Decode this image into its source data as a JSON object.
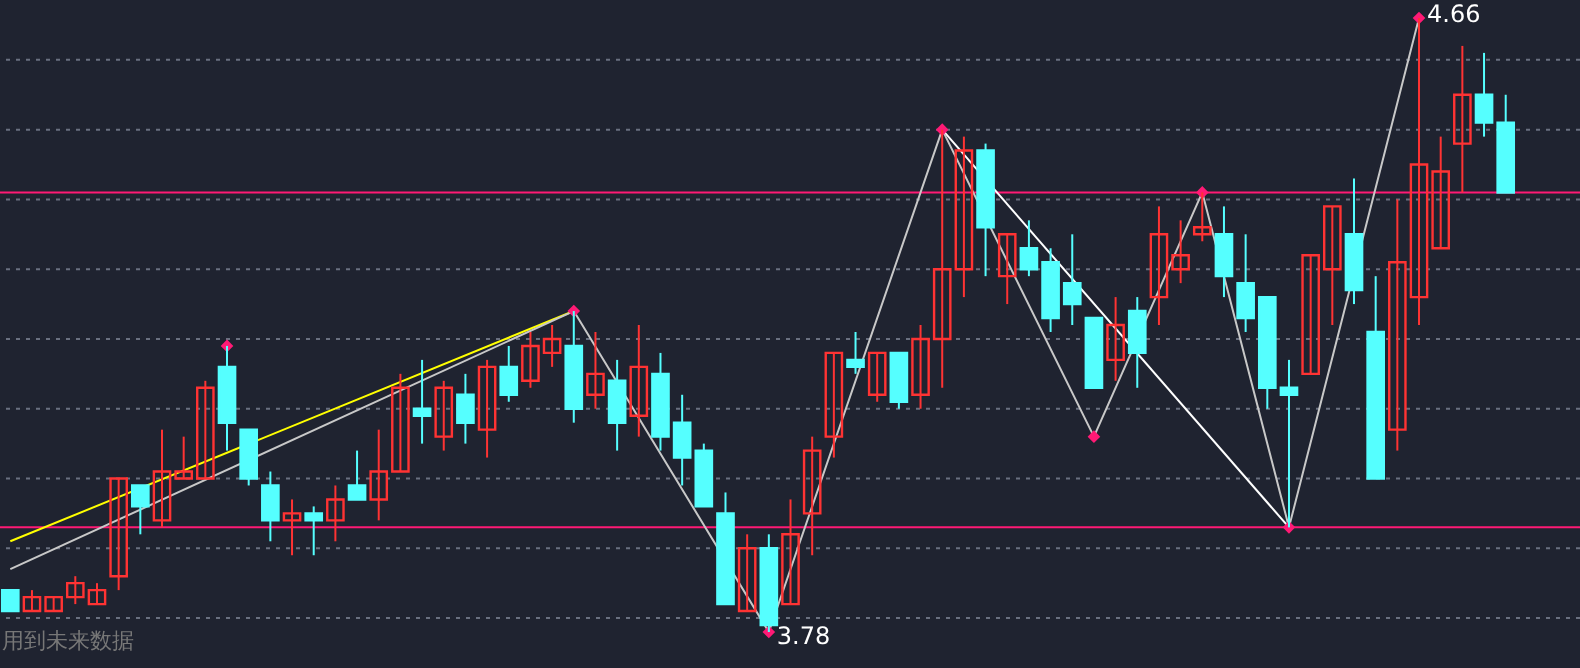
{
  "chart_data": {
    "type": "candlestick",
    "categories": [
      null,
      null,
      null,
      null,
      null,
      null,
      null,
      null,
      null,
      null,
      null,
      null,
      null,
      null,
      null,
      null,
      null,
      null,
      null,
      null,
      null,
      null,
      null,
      null,
      null,
      null,
      null,
      null,
      null,
      null,
      null,
      null,
      null,
      null,
      null,
      null,
      null,
      null,
      null,
      null,
      null,
      null,
      null,
      null,
      null,
      null,
      null,
      null,
      null,
      null,
      null,
      null,
      null,
      null,
      null,
      null,
      null,
      null,
      null,
      null,
      null,
      null,
      null,
      null,
      null,
      null,
      null,
      null,
      null,
      null
    ],
    "ohlc": [
      [
        3.84,
        3.84,
        3.81,
        3.81
      ],
      [
        3.81,
        3.84,
        3.81,
        3.83
      ],
      [
        3.81,
        3.83,
        3.81,
        3.83
      ],
      [
        3.83,
        3.86,
        3.82,
        3.85
      ],
      [
        3.82,
        3.85,
        3.82,
        3.84
      ],
      [
        3.86,
        4.0,
        3.84,
        4.0
      ],
      [
        3.99,
        3.99,
        3.92,
        3.96
      ],
      [
        3.94,
        4.07,
        3.93,
        4.01
      ],
      [
        4.0,
        4.06,
        4.0,
        4.01
      ],
      [
        4.0,
        4.14,
        4.0,
        4.13
      ],
      [
        4.16,
        4.19,
        4.04,
        4.08
      ],
      [
        4.07,
        4.07,
        3.99,
        4.0
      ],
      [
        3.99,
        4.01,
        3.91,
        3.94
      ],
      [
        3.94,
        3.97,
        3.89,
        3.95
      ],
      [
        3.95,
        3.96,
        3.89,
        3.94
      ],
      [
        3.94,
        3.99,
        3.91,
        3.97
      ],
      [
        3.99,
        4.04,
        3.97,
        3.97
      ],
      [
        3.97,
        4.07,
        3.94,
        4.01
      ],
      [
        4.01,
        4.15,
        4.01,
        4.13
      ],
      [
        4.1,
        4.17,
        4.05,
        4.09
      ],
      [
        4.06,
        4.14,
        4.04,
        4.13
      ],
      [
        4.12,
        4.15,
        4.05,
        4.08
      ],
      [
        4.07,
        4.17,
        4.03,
        4.16
      ],
      [
        4.16,
        4.19,
        4.11,
        4.12
      ],
      [
        4.14,
        4.21,
        4.13,
        4.19
      ],
      [
        4.18,
        4.22,
        4.16,
        4.2
      ],
      [
        4.19,
        4.24,
        4.08,
        4.1
      ],
      [
        4.12,
        4.21,
        4.1,
        4.15
      ],
      [
        4.14,
        4.17,
        4.04,
        4.08
      ],
      [
        4.09,
        4.22,
        4.06,
        4.16
      ],
      [
        4.15,
        4.18,
        4.04,
        4.06
      ],
      [
        4.08,
        4.12,
        3.99,
        4.03
      ],
      [
        4.04,
        4.05,
        3.96,
        3.96
      ],
      [
        3.95,
        3.98,
        3.82,
        3.82
      ],
      [
        3.81,
        3.92,
        3.81,
        3.9
      ],
      [
        3.9,
        3.92,
        3.78,
        3.79
      ],
      [
        3.82,
        3.97,
        3.82,
        3.92
      ],
      [
        3.95,
        4.06,
        3.89,
        4.04
      ],
      [
        4.06,
        4.18,
        4.03,
        4.18
      ],
      [
        4.17,
        4.21,
        4.15,
        4.16
      ],
      [
        4.12,
        4.18,
        4.11,
        4.18
      ],
      [
        4.18,
        4.18,
        4.1,
        4.11
      ],
      [
        4.12,
        4.22,
        4.1,
        4.2
      ],
      [
        4.2,
        4.5,
        4.13,
        4.3
      ],
      [
        4.3,
        4.49,
        4.26,
        4.47
      ],
      [
        4.47,
        4.48,
        4.29,
        4.36
      ],
      [
        4.29,
        4.35,
        4.25,
        4.35
      ],
      [
        4.33,
        4.37,
        4.29,
        4.3
      ],
      [
        4.31,
        4.33,
        4.21,
        4.23
      ],
      [
        4.28,
        4.35,
        4.22,
        4.25
      ],
      [
        4.23,
        4.23,
        4.13,
        4.13
      ],
      [
        4.17,
        4.26,
        4.14,
        4.22
      ],
      [
        4.24,
        4.26,
        4.13,
        4.18
      ],
      [
        4.26,
        4.39,
        4.22,
        4.35
      ],
      [
        4.3,
        4.37,
        4.28,
        4.32
      ],
      [
        4.35,
        4.41,
        4.34,
        4.36
      ],
      [
        4.35,
        4.39,
        4.26,
        4.29
      ],
      [
        4.28,
        4.35,
        4.21,
        4.23
      ],
      [
        4.26,
        4.26,
        4.1,
        4.13
      ],
      [
        4.13,
        4.17,
        3.93,
        4.12
      ],
      [
        4.15,
        4.32,
        4.15,
        4.32
      ],
      [
        4.3,
        4.39,
        4.22,
        4.39
      ],
      [
        4.35,
        4.43,
        4.25,
        4.27
      ],
      [
        4.21,
        4.29,
        4.0,
        4.0
      ],
      [
        4.07,
        4.4,
        4.04,
        4.31
      ],
      [
        4.26,
        4.66,
        4.22,
        4.45
      ],
      [
        4.33,
        4.49,
        4.33,
        4.44
      ],
      [
        4.48,
        4.62,
        4.41,
        4.55
      ],
      [
        4.55,
        4.61,
        4.49,
        4.51
      ],
      [
        4.51,
        4.55,
        4.41,
        4.41
      ]
    ],
    "colors": [
      "#55ffff",
      "#ff3333",
      "#ff3333",
      "#ff3333",
      "#ff3333",
      "#ff3333",
      "#55ffff",
      "#ff3333",
      "#ff3333",
      "#ff3333",
      "#55ffff",
      "#55ffff",
      "#55ffff",
      "#ff3333",
      "#55ffff",
      "#ff3333",
      "#55ffff",
      "#ff3333",
      "#ff3333",
      "#55ffff",
      "#ff3333",
      "#55ffff",
      "#ff3333",
      "#55ffff",
      "#ff3333",
      "#ff3333",
      "#55ffff",
      "#ff3333",
      "#55ffff",
      "#ff3333",
      "#55ffff",
      "#55ffff",
      "#55ffff",
      "#55ffff",
      "#ff3333",
      "#55ffff",
      "#ff3333",
      "#ff3333",
      "#ff3333",
      "#55ffff",
      "#ff3333",
      "#55ffff",
      "#ff3333",
      "#ff3333",
      "#ff3333",
      "#55ffff",
      "#ff3333",
      "#55ffff",
      "#55ffff",
      "#55ffff",
      "#55ffff",
      "#ff3333",
      "#55ffff",
      "#ff3333",
      "#ff3333",
      "#ff3333",
      "#55ffff",
      "#55ffff",
      "#55ffff",
      "#55ffff",
      "#ff3333",
      "#ff3333",
      "#55ffff",
      "#55ffff",
      "#ff3333",
      "#ff3333",
      "#ff3333",
      "#ff3333",
      "#55ffff",
      "#55ffff"
    ],
    "series": [
      {
        "type": "line",
        "color": "#ffff00",
        "values": [
          3.91,
          null,
          null,
          null,
          null,
          null,
          null,
          null,
          null,
          null,
          null,
          null,
          null,
          null,
          null,
          null,
          null,
          null,
          null,
          null,
          null,
          null,
          null,
          null,
          null,
          null,
          4.24,
          null,
          null,
          null,
          null,
          null,
          null,
          null,
          null,
          null,
          null,
          null,
          null,
          null,
          null,
          null,
          null,
          null,
          null,
          null,
          null,
          null,
          null,
          null,
          null,
          null,
          null,
          null,
          null,
          null,
          null,
          null,
          null,
          null,
          null,
          null,
          null,
          null,
          null,
          null,
          null,
          null,
          null,
          null
        ]
      },
      {
        "type": "line",
        "color": "#c8c8c8",
        "values": [
          3.87,
          null,
          null,
          null,
          null,
          null,
          null,
          null,
          null,
          null,
          null,
          null,
          null,
          null,
          null,
          null,
          null,
          null,
          null,
          null,
          null,
          null,
          null,
          null,
          null,
          null,
          4.24,
          null,
          null,
          null,
          null,
          null,
          null,
          null,
          null,
          null,
          null,
          null,
          null,
          null,
          null,
          null,
          null,
          null,
          null,
          null,
          null,
          null,
          null,
          null,
          null,
          null,
          null,
          null,
          null,
          null,
          null,
          null,
          null,
          null,
          null,
          null,
          null,
          null,
          null,
          null,
          null,
          null,
          null,
          null
        ]
      },
      {
        "type": "line",
        "color": "#ffffff",
        "values": [
          null,
          null,
          null,
          null,
          null,
          null,
          null,
          null,
          null,
          null,
          null,
          null,
          null,
          null,
          null,
          null,
          null,
          null,
          null,
          null,
          null,
          null,
          null,
          null,
          null,
          null,
          null,
          null,
          null,
          null,
          null,
          null,
          null,
          null,
          null,
          null,
          null,
          null,
          null,
          null,
          null,
          null,
          null,
          4.5,
          null,
          null,
          null,
          null,
          null,
          null,
          null,
          null,
          null,
          null,
          null,
          null,
          null,
          null,
          null,
          3.93,
          null,
          null,
          null,
          null,
          null,
          null,
          null,
          null,
          null,
          null
        ]
      },
      {
        "type": "line",
        "color": "#c8c8c8",
        "values": [
          null,
          null,
          null,
          null,
          null,
          null,
          null,
          null,
          null,
          null,
          null,
          null,
          null,
          null,
          null,
          null,
          null,
          null,
          null,
          null,
          null,
          null,
          null,
          null,
          null,
          null,
          4.24,
          null,
          null,
          null,
          null,
          null,
          null,
          null,
          null,
          3.78,
          null,
          null,
          null,
          null,
          null,
          null,
          null,
          4.5,
          null,
          null,
          null,
          null,
          null,
          null,
          4.06,
          null,
          null,
          null,
          null,
          4.41,
          null,
          null,
          null,
          3.93,
          null,
          null,
          null,
          null,
          null,
          4.66,
          null,
          null,
          null,
          null
        ]
      },
      {
        "type": "scatter",
        "color": "#ff1a75",
        "marker": "diamond",
        "values": [
          null,
          null,
          null,
          null,
          null,
          null,
          null,
          null,
          null,
          null,
          4.19,
          null,
          null,
          null,
          null,
          null,
          null,
          null,
          null,
          null,
          null,
          null,
          null,
          null,
          null,
          null,
          4.24,
          null,
          null,
          null,
          null,
          null,
          null,
          null,
          null,
          3.78,
          null,
          null,
          null,
          null,
          null,
          null,
          null,
          4.5,
          null,
          null,
          null,
          null,
          null,
          null,
          4.06,
          null,
          null,
          null,
          null,
          4.41,
          null,
          null,
          null,
          3.93,
          null,
          null,
          null,
          null,
          null,
          4.66,
          null,
          null,
          null,
          null
        ]
      }
    ],
    "ref_lines": [
      {
        "axis": "y",
        "value": 4.41,
        "color": "#ff1a75"
      },
      {
        "axis": "y",
        "value": 3.93,
        "color": "#ff1a75"
      }
    ],
    "annotations": [
      "4.66",
      "3.78",
      "用到未来数据"
    ],
    "yticks": [
      {
        "value": 3.8,
        "label": null
      },
      {
        "value": 3.9,
        "label": null
      },
      {
        "value": 4.0,
        "label": null
      },
      {
        "value": 4.1,
        "label": null
      },
      {
        "value": 4.2,
        "label": null
      },
      {
        "value": 4.3,
        "label": null
      },
      {
        "value": 4.4,
        "label": null
      },
      {
        "value": 4.5,
        "label": null
      },
      {
        "value": 4.6,
        "label": null
      }
    ],
    "grid": "y",
    "line_style": "solid"
  }
}
